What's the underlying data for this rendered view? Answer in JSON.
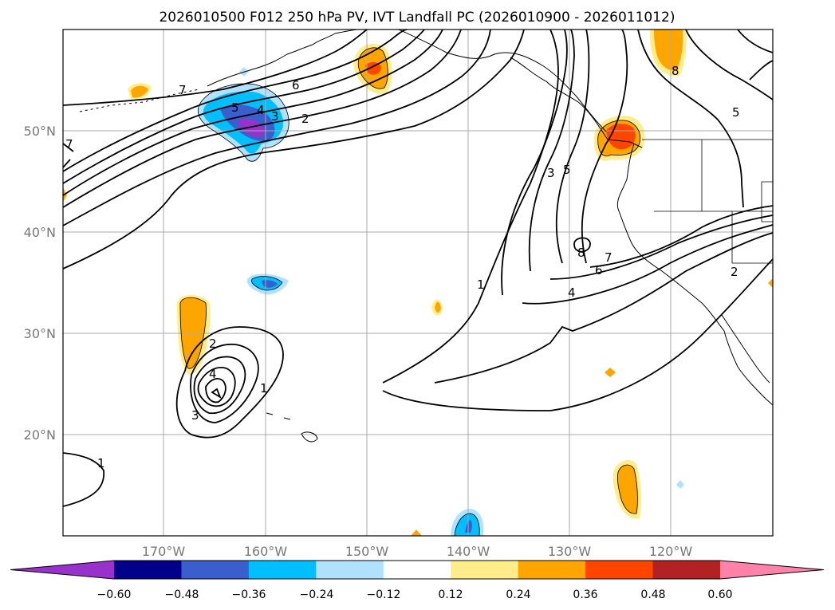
{
  "title": "2026010500 F012 250 hPa PV, IVT Landfall PC (2026010900 - 2026011012)",
  "map": {
    "lat_labels": [
      "50°N",
      "40°N",
      "30°N",
      "20°N"
    ],
    "lon_labels": [
      "170°W",
      "160°W",
      "150°W",
      "140°W",
      "130°W",
      "120°W"
    ],
    "extent": {
      "lon_min": -180,
      "lon_max": -110,
      "lat_min": 10,
      "lat_max": 60
    },
    "contour_labels": [
      "7",
      "6",
      "5",
      "4",
      "3",
      "2",
      "1",
      "2",
      "4",
      "3",
      "1",
      "1",
      "3",
      "5",
      "7",
      "6",
      "4",
      "8",
      "5",
      "2",
      "8",
      "7"
    ]
  },
  "colorbar": {
    "ticks": [
      "−0.60",
      "−0.48",
      "−0.36",
      "−0.24",
      "−0.12",
      "0.12",
      "0.24",
      "0.36",
      "0.48",
      "0.60"
    ],
    "colors": [
      "#9932cc",
      "#00008b",
      "#3a5fcd",
      "#00bfff",
      "#b0e2ff",
      "#ffffff",
      "#ffec8b",
      "#ffa500",
      "#ff4500",
      "#b22222",
      "#ff82ab"
    ]
  },
  "colors": {
    "outline": "#000000",
    "grid": "#aaaaaa",
    "neg_dark": "#9932cc",
    "neg_mid": "#3a5fcd",
    "neg_light": "#00bfff",
    "neg_pale": "#b0e2ff",
    "pos_pale": "#ffec8b",
    "pos_mid": "#ffa500",
    "pos_strong": "#ff4500"
  }
}
